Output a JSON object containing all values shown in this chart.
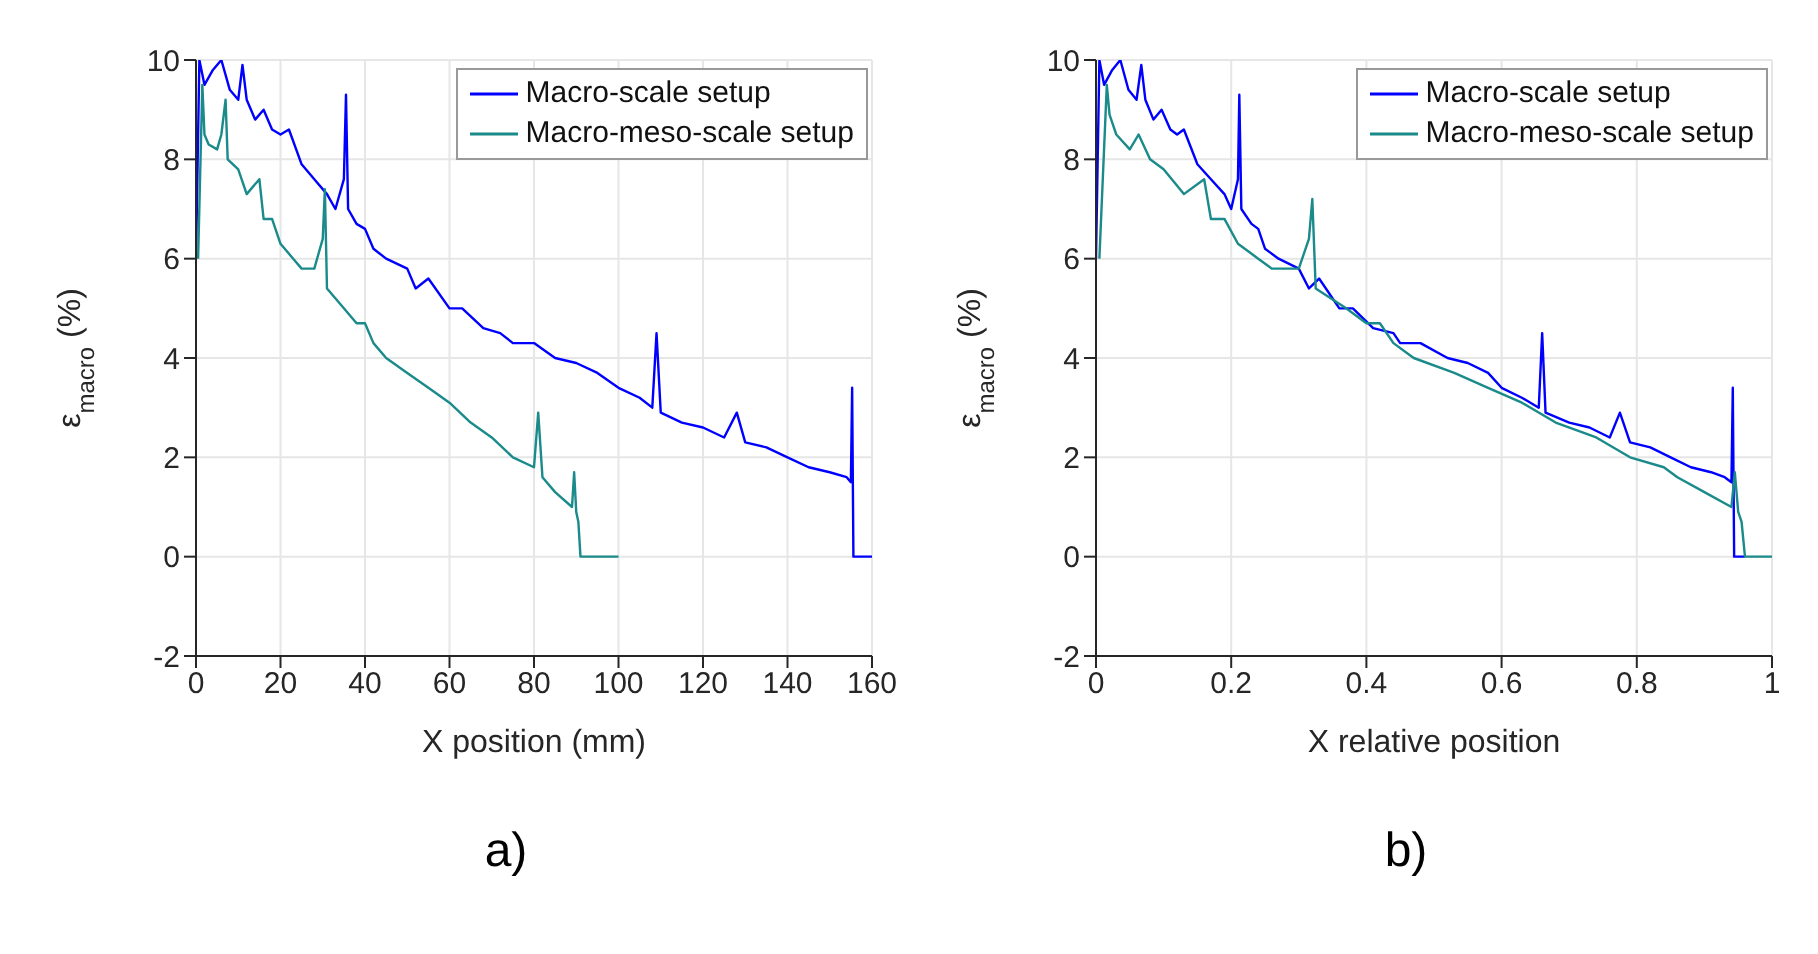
{
  "chart_data": [
    {
      "type": "line",
      "xlabel": "X position (mm)",
      "ylabel": "ε$_{macro}$ (%)",
      "xlim": [
        0,
        160
      ],
      "xticks": [
        0,
        20,
        40,
        60,
        80,
        100,
        120,
        140,
        160
      ],
      "ylim": [
        -2,
        10
      ],
      "yticks": [
        -2,
        0,
        2,
        4,
        6,
        8,
        10
      ],
      "grid": true,
      "legend": "top right",
      "marker": "none",
      "line_style": "solid",
      "annotations": [
        "a)"
      ],
      "series": [
        {
          "name": "Macro-scale setup",
          "color": "#0000ff",
          "x": [
            0,
            0.8,
            2,
            4,
            6,
            8,
            10,
            11,
            12,
            14,
            16,
            18,
            20,
            22,
            25,
            28,
            31,
            33,
            35,
            35.5,
            36,
            38,
            40,
            42,
            45,
            50,
            52,
            55,
            60,
            63,
            68,
            72,
            75,
            80,
            85,
            90,
            95,
            100,
            105,
            108,
            109,
            110,
            115,
            120,
            125,
            128,
            130,
            135,
            140,
            145,
            150,
            154,
            155,
            155.3,
            155.6,
            160
          ],
          "values": [
            6,
            10,
            9.5,
            9.8,
            10,
            9.4,
            9.2,
            9.9,
            9.2,
            8.8,
            9,
            8.6,
            8.5,
            8.6,
            7.9,
            7.6,
            7.3,
            7,
            7.6,
            9.3,
            7,
            6.7,
            6.6,
            6.2,
            6,
            5.8,
            5.4,
            5.6,
            5,
            5,
            4.6,
            4.5,
            4.3,
            4.3,
            4,
            3.9,
            3.7,
            3.4,
            3.2,
            3,
            4.5,
            2.9,
            2.7,
            2.6,
            2.4,
            2.9,
            2.3,
            2.2,
            2,
            1.8,
            1.7,
            1.6,
            1.5,
            3.4,
            0,
            0
          ]
        },
        {
          "name": "Macro-meso-scale setup",
          "color": "#1a8a8a",
          "x": [
            0.5,
            1.5,
            2,
            3,
            5,
            6,
            7,
            7.5,
            10,
            12,
            15,
            16,
            18,
            20,
            23,
            25,
            28,
            30,
            30.5,
            31,
            35,
            38,
            40,
            42,
            45,
            50,
            55,
            60,
            65,
            70,
            75,
            80,
            81,
            82,
            85,
            89,
            89.5,
            90,
            90.5,
            91,
            100
          ],
          "values": [
            6,
            9.5,
            8.5,
            8.3,
            8.2,
            8.5,
            9.2,
            8,
            7.8,
            7.3,
            7.6,
            6.8,
            6.8,
            6.3,
            6,
            5.8,
            5.8,
            6.4,
            7.4,
            5.4,
            5,
            4.7,
            4.7,
            4.3,
            4,
            3.7,
            3.4,
            3.1,
            2.7,
            2.4,
            2,
            1.8,
            2.9,
            1.6,
            1.3,
            1,
            1.7,
            0.9,
            0.7,
            0,
            0
          ]
        }
      ]
    },
    {
      "type": "line",
      "xlabel": "X relative position",
      "ylabel": "ε$_{macro}$ (%)",
      "xlim": [
        0,
        1
      ],
      "xticks": [
        0,
        0.2,
        0.4,
        0.6,
        0.8,
        1
      ],
      "ylim": [
        -2,
        10
      ],
      "yticks": [
        -2,
        0,
        2,
        4,
        6,
        8,
        10
      ],
      "grid": true,
      "legend": "top right",
      "marker": "none",
      "line_style": "solid",
      "annotations": [
        "b)"
      ],
      "series": [
        {
          "name": "Macro-scale setup",
          "color": "#0000ff",
          "x": [
            0,
            0.005,
            0.012,
            0.024,
            0.036,
            0.048,
            0.06,
            0.067,
            0.073,
            0.085,
            0.097,
            0.11,
            0.12,
            0.13,
            0.15,
            0.17,
            0.19,
            0.2,
            0.21,
            0.212,
            0.215,
            0.23,
            0.24,
            0.25,
            0.27,
            0.3,
            0.315,
            0.33,
            0.36,
            0.38,
            0.41,
            0.44,
            0.45,
            0.48,
            0.52,
            0.55,
            0.58,
            0.6,
            0.63,
            0.655,
            0.66,
            0.665,
            0.7,
            0.73,
            0.76,
            0.775,
            0.79,
            0.82,
            0.85,
            0.88,
            0.91,
            0.93,
            0.94,
            0.942,
            0.944,
            0.96
          ],
          "values": [
            6,
            10,
            9.5,
            9.8,
            10,
            9.4,
            9.2,
            9.9,
            9.2,
            8.8,
            9,
            8.6,
            8.5,
            8.6,
            7.9,
            7.6,
            7.3,
            7,
            7.6,
            9.3,
            7,
            6.7,
            6.6,
            6.2,
            6,
            5.8,
            5.4,
            5.6,
            5,
            5,
            4.6,
            4.5,
            4.3,
            4.3,
            4,
            3.9,
            3.7,
            3.4,
            3.2,
            3,
            4.5,
            2.9,
            2.7,
            2.6,
            2.4,
            2.9,
            2.3,
            2.2,
            2,
            1.8,
            1.7,
            1.6,
            1.5,
            3.4,
            0,
            0
          ]
        },
        {
          "name": "Macro-meso-scale setup",
          "color": "#1a8a8a",
          "x": [
            0.005,
            0.016,
            0.02,
            0.03,
            0.05,
            0.063,
            0.08,
            0.1,
            0.13,
            0.16,
            0.17,
            0.19,
            0.21,
            0.24,
            0.26,
            0.3,
            0.315,
            0.32,
            0.325,
            0.37,
            0.4,
            0.42,
            0.44,
            0.47,
            0.53,
            0.58,
            0.63,
            0.68,
            0.74,
            0.79,
            0.84,
            0.86,
            0.9,
            0.94,
            0.945,
            0.95,
            0.955,
            0.96,
            1
          ],
          "values": [
            6,
            9.5,
            8.9,
            8.5,
            8.2,
            8.5,
            8,
            7.8,
            7.3,
            7.6,
            6.8,
            6.8,
            6.3,
            6,
            5.8,
            5.8,
            6.4,
            7.2,
            5.4,
            5,
            4.7,
            4.7,
            4.3,
            4,
            3.7,
            3.4,
            3.1,
            2.7,
            2.4,
            2,
            1.8,
            1.6,
            1.3,
            1,
            1.7,
            0.9,
            0.7,
            0,
            0
          ]
        }
      ]
    }
  ]
}
